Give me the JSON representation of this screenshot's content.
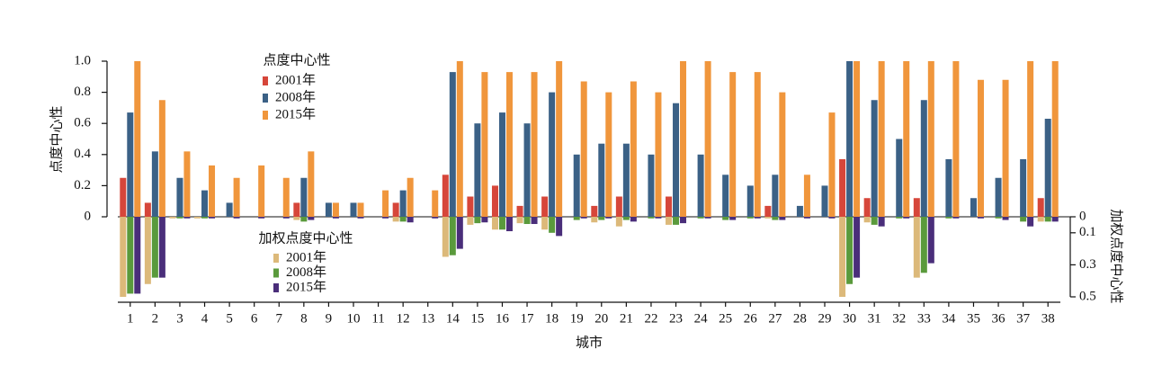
{
  "chart_data": {
    "type": "bar",
    "ylabel": "点度中心性",
    "y2label": "加权点度中心性",
    "xlabel": "城市",
    "legend_title": "点度中心性",
    "legend2_title": "加权点度中心性",
    "categories": [
      "1",
      "2",
      "3",
      "4",
      "5",
      "6",
      "7",
      "8",
      "9",
      "10",
      "11",
      "12",
      "13",
      "14",
      "15",
      "16",
      "17",
      "18",
      "19",
      "20",
      "21",
      "22",
      "23",
      "24",
      "25",
      "26",
      "27",
      "28",
      "29",
      "30",
      "31",
      "32",
      "33",
      "34",
      "35",
      "36",
      "37",
      "38"
    ],
    "ylim": [
      0,
      1
    ],
    "yticks": [
      0,
      0.2,
      0.4,
      0.6,
      0.8,
      {
        "value": 1,
        "label": "1.0"
      }
    ],
    "y2lim": [
      0,
      0.5
    ],
    "y2ticks": [
      0,
      0.1,
      0.3,
      0.5
    ],
    "y2_inverted": true,
    "series": [
      {
        "name": "2001年",
        "color": "#d6463a",
        "values": [
          0.25,
          0.09,
          0,
          0,
          0,
          0,
          0,
          0.09,
          0,
          0,
          0,
          0.09,
          0,
          0.27,
          0.13,
          0.2,
          0.07,
          0.13,
          0,
          0.07,
          0.13,
          0,
          0.13,
          0,
          0,
          0,
          0.07,
          0,
          0,
          0.37,
          0.12,
          0,
          0.12,
          0,
          0,
          0,
          0,
          0.12
        ]
      },
      {
        "name": "2008年",
        "color": "#3b6186",
        "values": [
          0.67,
          0.42,
          0.25,
          0.17,
          0.09,
          0,
          0,
          0.25,
          0.09,
          0.09,
          0,
          0.17,
          0,
          0.93,
          0.6,
          0.67,
          0.6,
          0.8,
          0.4,
          0.47,
          0.47,
          0.4,
          0.73,
          0.4,
          0.27,
          0.2,
          0.27,
          0.07,
          0.2,
          1,
          0.75,
          0.5,
          0.75,
          0.37,
          0.12,
          0.25,
          0.37,
          0.63
        ]
      },
      {
        "name": "2015年",
        "color": "#f0963c",
        "values": [
          1,
          0.75,
          0.42,
          0.33,
          0.25,
          0.33,
          0.25,
          0.42,
          0.09,
          0.09,
          0.17,
          0.25,
          0.17,
          1,
          0.93,
          0.93,
          0.93,
          1,
          0.87,
          0.8,
          0.87,
          0.8,
          1,
          1,
          0.93,
          0.93,
          0.8,
          0.27,
          0.67,
          1,
          1,
          1,
          1,
          1,
          0.88,
          0.88,
          1,
          1
        ]
      },
      {
        "name": "2001年",
        "color": "#dcb97a",
        "axis": "y2",
        "values": [
          0.5,
          0.42,
          0.01,
          0.01,
          0,
          0,
          0,
          0.02,
          0,
          0,
          0,
          0.03,
          0,
          0.25,
          0.05,
          0.08,
          0.04,
          0.08,
          0,
          0.035,
          0.06,
          0,
          0.05,
          0,
          0,
          0,
          0.01,
          0,
          0,
          0.5,
          0.035,
          0,
          0.38,
          0,
          0,
          0,
          0,
          0.03
        ]
      },
      {
        "name": "2008年",
        "color": "#5a9a3c",
        "axis": "y2",
        "values": [
          0.48,
          0.38,
          0.01,
          0.01,
          0,
          0,
          0,
          0.03,
          0,
          0,
          0,
          0.03,
          0,
          0.24,
          0.04,
          0.08,
          0.045,
          0.1,
          0.02,
          0.02,
          0.02,
          0.01,
          0.05,
          0.01,
          0.02,
          0.01,
          0.02,
          0,
          0,
          0.42,
          0.05,
          0.01,
          0.35,
          0.01,
          0,
          0.01,
          0.03,
          0.03
        ]
      },
      {
        "name": "2015年",
        "color": "#4a2e7a",
        "axis": "y2",
        "values": [
          0.48,
          0.38,
          0.01,
          0.01,
          0.01,
          0.01,
          0.01,
          0.02,
          0.01,
          0.01,
          0.01,
          0.035,
          0.01,
          0.2,
          0.035,
          0.09,
          0.045,
          0.12,
          0.01,
          0.01,
          0.03,
          0.01,
          0.04,
          0.01,
          0.02,
          0.01,
          0.02,
          0.01,
          0.01,
          0.38,
          0.06,
          0.01,
          0.29,
          0.01,
          0.01,
          0.02,
          0.06,
          0.03
        ]
      }
    ]
  }
}
